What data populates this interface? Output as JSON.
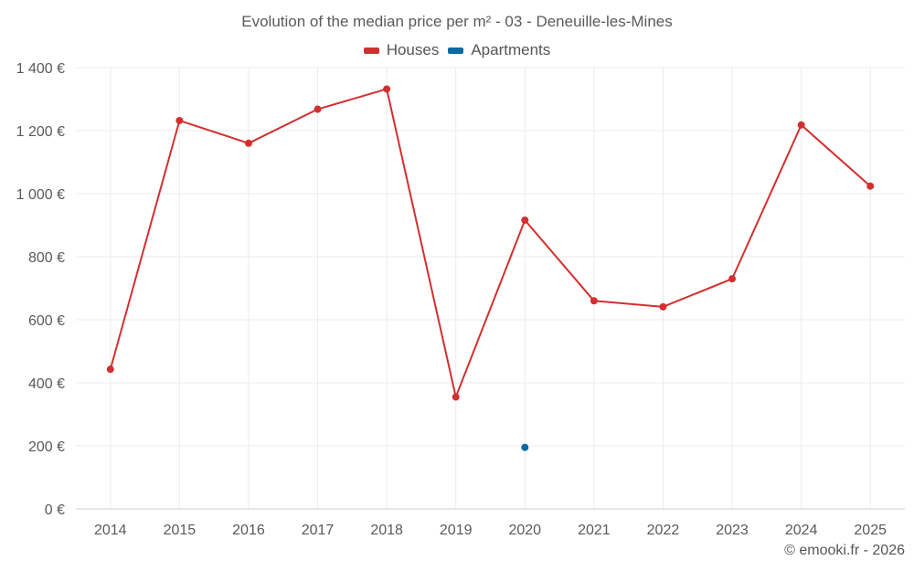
{
  "chart_data": {
    "type": "line",
    "title": "Evolution of the median price per m² - 03 - Deneuille-les-Mines",
    "categories": [
      "2014",
      "2015",
      "2016",
      "2017",
      "2018",
      "2019",
      "2020",
      "2021",
      "2022",
      "2023",
      "2024",
      "2025"
    ],
    "y_ticks": [
      "0 €",
      "200 €",
      "400 €",
      "600 €",
      "800 €",
      "1 000 €",
      "1 200 €",
      "1 400 €"
    ],
    "ylim": [
      0,
      1400
    ],
    "grid": true,
    "legend_position": "top-center",
    "series": [
      {
        "name": "Houses",
        "color": "#d32f2f",
        "values": [
          443,
          1232,
          1160,
          1268,
          1332,
          355,
          916,
          660,
          641,
          730,
          1218,
          1024
        ]
      },
      {
        "name": "Apartments",
        "color": "#0b6aa2",
        "values": [
          null,
          null,
          null,
          null,
          null,
          null,
          195,
          null,
          null,
          null,
          null,
          null
        ]
      }
    ]
  },
  "credit": "© emooki.fr - 2026"
}
